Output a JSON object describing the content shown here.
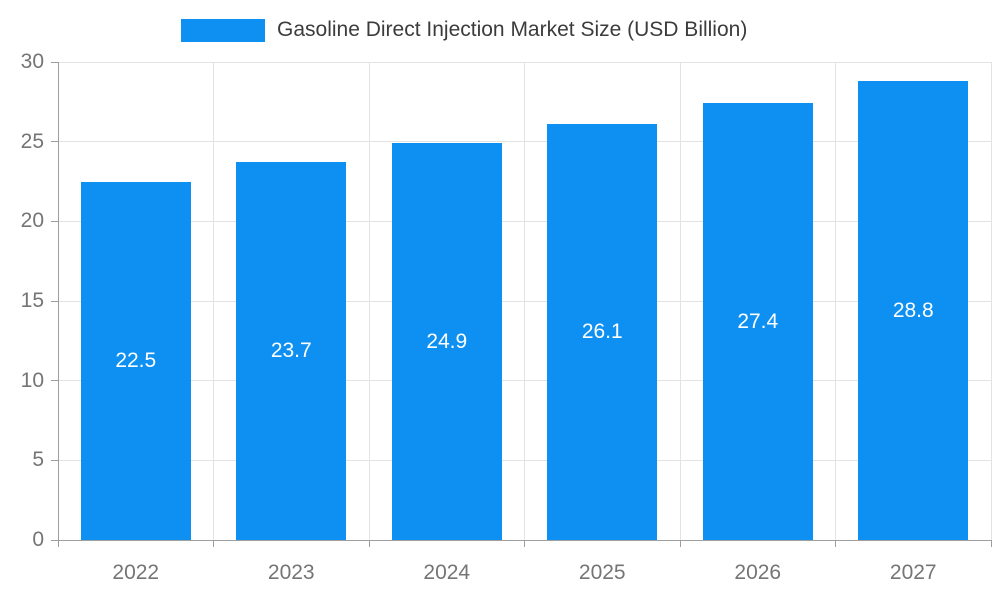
{
  "chart_data": {
    "type": "bar",
    "title": "Gasoline Direct Injection Market Size (USD Billion)",
    "categories": [
      "2022",
      "2023",
      "2024",
      "2025",
      "2026",
      "2027"
    ],
    "values": [
      22.5,
      23.7,
      24.9,
      26.1,
      27.4,
      28.8
    ],
    "value_labels": [
      "22.5",
      "23.7",
      "24.9",
      "26.1",
      "27.4",
      "28.8"
    ],
    "xlabel": "",
    "ylabel": "",
    "ylim": [
      0,
      30
    ],
    "yticks": [
      0,
      5,
      10,
      15,
      20,
      25,
      30
    ],
    "grid": true,
    "legend_position": "top",
    "colors": {
      "bar": "#0e90f2",
      "bar_label_text": "#ffffff",
      "axis_line": "#9e9e9e",
      "gridline": "#e3e3e3",
      "tick_label": "#757575",
      "title_text": "#3c3c3c",
      "background": "#ffffff"
    }
  }
}
